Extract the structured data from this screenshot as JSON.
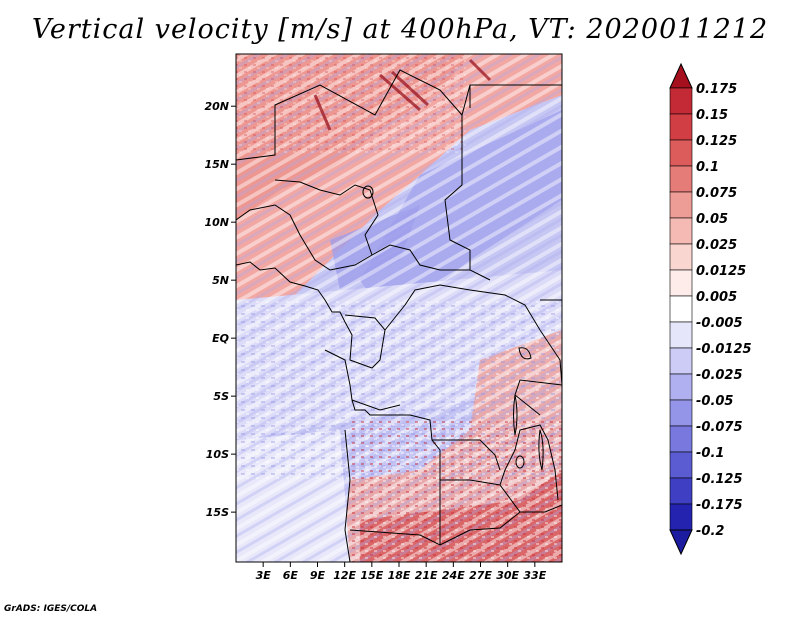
{
  "title": "Vertical velocity [m/s] at 400hPa, VT: 2020011212",
  "credit": "GrADS: IGES/COLA",
  "map": {
    "lon_range": [
      0,
      36
    ],
    "lat_range": [
      -19.3,
      24.5
    ],
    "lon_ticks": [
      {
        "value": 3,
        "label": "3E"
      },
      {
        "value": 6,
        "label": "6E"
      },
      {
        "value": 9,
        "label": "9E"
      },
      {
        "value": 12,
        "label": "12E"
      },
      {
        "value": 15,
        "label": "15E"
      },
      {
        "value": 18,
        "label": "18E"
      },
      {
        "value": 21,
        "label": "21E"
      },
      {
        "value": 24,
        "label": "24E"
      },
      {
        "value": 27,
        "label": "27E"
      },
      {
        "value": 30,
        "label": "30E"
      },
      {
        "value": 33,
        "label": "33E"
      }
    ],
    "lat_ticks": [
      {
        "value": 20,
        "label": "20N"
      },
      {
        "value": 15,
        "label": "15N"
      },
      {
        "value": 10,
        "label": "10N"
      },
      {
        "value": 5,
        "label": "5N"
      },
      {
        "value": 0,
        "label": "EQ"
      },
      {
        "value": -5,
        "label": "5S"
      },
      {
        "value": -10,
        "label": "10S"
      },
      {
        "value": -15,
        "label": "15S"
      }
    ]
  },
  "colorbar": {
    "levels": [
      {
        "label": "0.175",
        "color": "#b2182b"
      },
      {
        "label": "0.15",
        "color": "#c42a35"
      },
      {
        "label": "0.125",
        "color": "#d13f44"
      },
      {
        "label": "0.1",
        "color": "#dc5c5c"
      },
      {
        "label": "0.075",
        "color": "#e57c78"
      },
      {
        "label": "0.05",
        "color": "#ee9c96"
      },
      {
        "label": "0.025",
        "color": "#f5bab4"
      },
      {
        "label": "0.0125",
        "color": "#fad6d1"
      },
      {
        "label": "0.005",
        "color": "#fdecea"
      },
      {
        "label": "-0.005",
        "color": "#ffffff"
      },
      {
        "label": "-0.0125",
        "color": "#e6e6fb"
      },
      {
        "label": "-0.025",
        "color": "#ccccf6"
      },
      {
        "label": "-0.05",
        "color": "#b0b0f0"
      },
      {
        "label": "-0.075",
        "color": "#9494e8"
      },
      {
        "label": "-0.1",
        "color": "#7878de"
      },
      {
        "label": "-0.125",
        "color": "#5b5bd2"
      },
      {
        "label": "-0.175",
        "color": "#3f3fc4"
      },
      {
        "label": "-0.2",
        "color": "#2323b0"
      }
    ],
    "top_color": "#a50f1e",
    "bottom_color": "#1c1ca0"
  }
}
